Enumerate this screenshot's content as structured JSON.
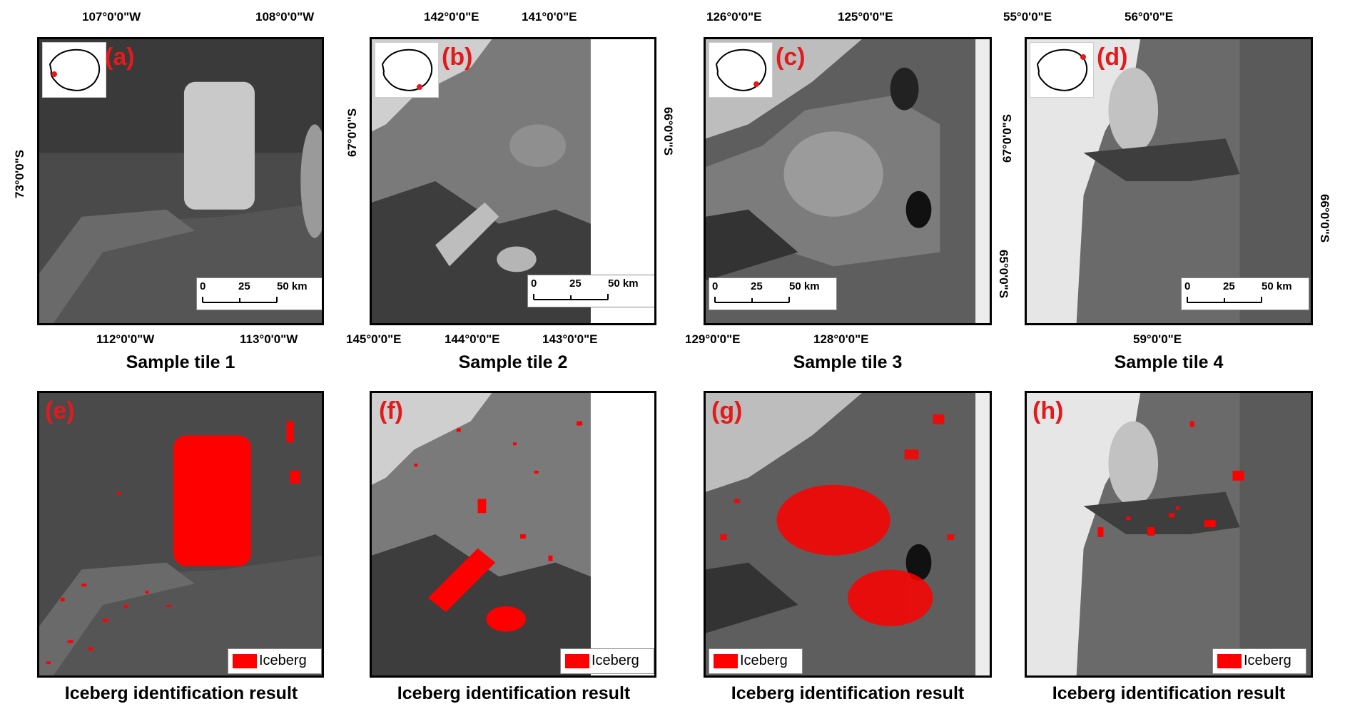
{
  "figure": {
    "top_row": [
      {
        "label": "(a)",
        "caption": "Sample tile 1",
        "top_ticks": [
          "107°0'0\"W",
          "108°0'0\"W"
        ],
        "bottom_ticks": [
          "112°0'0\"W",
          "113°0'0\"W"
        ],
        "left_ticks": [
          "73°0'0\"S"
        ],
        "right_ticks": [],
        "scale": [
          "0",
          "25",
          "50 km"
        ]
      },
      {
        "label": "(b)",
        "caption": "Sample tile 2",
        "top_ticks": [
          "142°0'0\"E",
          "141°0'0\"E"
        ],
        "bottom_ticks": [
          "145°0'0\"E",
          "144°0'0\"E",
          "143°0'0\"E"
        ],
        "left_ticks": [
          "67°0'0\"S"
        ],
        "right_ticks": [
          "66°0'0\"S"
        ],
        "scale": [
          "0",
          "25",
          "50 km"
        ]
      },
      {
        "label": "(c)",
        "caption": "Sample tile 3",
        "top_ticks": [
          "126°0'0\"E",
          "125°0'0\"E"
        ],
        "bottom_ticks": [
          "129°0'0\"E",
          "128°0'0\"E"
        ],
        "left_ticks": [],
        "right_ticks": [
          "65°0'0\"S"
        ],
        "scale": [
          "0",
          "25",
          "50 km"
        ]
      },
      {
        "label": "(d)",
        "caption": "Sample tile 4",
        "top_ticks": [
          "55°0'0\"E",
          "56°0'0\"E"
        ],
        "bottom_ticks": [
          "59°0'0\"E"
        ],
        "left_ticks": [
          "67°0'0\"S"
        ],
        "right_ticks": [
          "66°0'0\"S"
        ],
        "scale": [
          "0",
          "25",
          "50 km"
        ]
      }
    ],
    "bottom_row": [
      {
        "label": "(e)",
        "caption": "Iceberg identification result",
        "legend": "Iceberg"
      },
      {
        "label": "(f)",
        "caption": "Iceberg identification result",
        "legend": "Iceberg"
      },
      {
        "label": "(g)",
        "caption": "Iceberg identification result",
        "legend": "Iceberg"
      },
      {
        "label": "(h)",
        "caption": "Iceberg identification result",
        "legend": "Iceberg"
      }
    ],
    "colors": {
      "label": "#e31a1c",
      "iceberg": "#ff0000",
      "location_marker": "#e31a1c"
    }
  }
}
